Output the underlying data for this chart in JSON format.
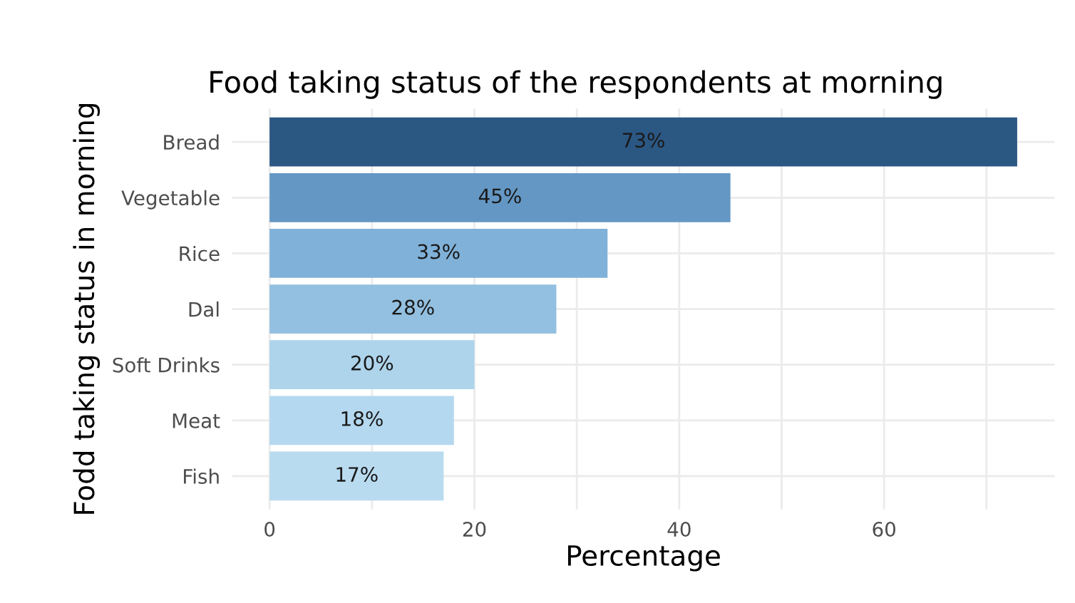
{
  "chart_data": {
    "type": "bar",
    "orientation": "horizontal",
    "title": "Food taking status of the respondents at morning",
    "xlabel": "Percentage",
    "ylabel": "Fodd taking status in morning",
    "categories": [
      "Bread",
      "Vegetable",
      "Rice",
      "Dal",
      "Soft Drinks",
      "Meat",
      "Fish"
    ],
    "values": [
      73,
      45,
      33,
      28,
      20,
      18,
      17
    ],
    "colors": [
      "#2b5783",
      "#6497c4",
      "#80b1d8",
      "#93c0e0",
      "#aed4ec",
      "#b4d8ef",
      "#b9dbf0"
    ],
    "value_labels": [
      "73%",
      "45%",
      "33%",
      "28%",
      "20%",
      "18%",
      "17%"
    ],
    "xlim": [
      -3.65,
      76.65
    ],
    "xticks": [
      0,
      {
        "value": 10,
        "label": null
      },
      20,
      {
        "value": 30,
        "label": null
      },
      40,
      {
        "value": 50,
        "label": null
      },
      60,
      {
        "value": 70,
        "label": null
      }
    ],
    "grid": true
  }
}
